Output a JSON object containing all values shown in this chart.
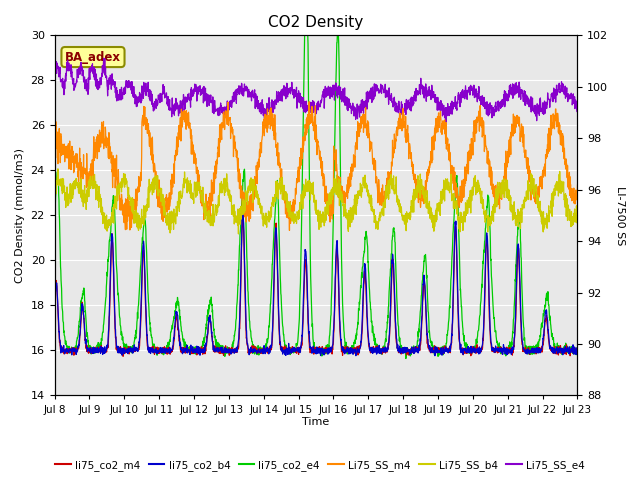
{
  "title": "CO2 Density",
  "xlabel": "Time",
  "ylabel_left": "CO2 Density (mmol/m3)",
  "ylabel_right": "LI-7500 SS",
  "ylim_left": [
    14,
    30
  ],
  "ylim_right": [
    88,
    102
  ],
  "xlim": [
    0,
    15
  ],
  "x_tick_labels": [
    "Jul 8",
    "Jul 9",
    "Jul 10",
    "Jul 11",
    "Jul 12",
    "Jul 13",
    "Jul 14",
    "Jul 15",
    "Jul 16",
    "Jul 17",
    "Jul 18",
    "Jul 19",
    "Jul 20",
    "Jul 21",
    "Jul 22",
    "Jul 23"
  ],
  "yticks_left": [
    14,
    16,
    18,
    20,
    22,
    24,
    26,
    28,
    30
  ],
  "yticks_right": [
    88,
    90,
    92,
    94,
    96,
    98,
    100,
    102
  ],
  "colors": {
    "li75_co2_m4": "#cc0000",
    "li75_co2_b4": "#0000cc",
    "li75_co2_e4": "#00cc00",
    "Li75_SS_m4": "#ff8800",
    "Li75_SS_b4": "#cccc00",
    "Li75_SS_e4": "#8800cc"
  },
  "bg_color": "#e8e8e8",
  "annotation_text": "BA_adex",
  "annotation_color": "#8b0000",
  "annotation_bg": "#ffff99",
  "annotation_border": "#8b8b00",
  "spike_times": [
    0.05,
    0.8,
    1.65,
    2.55,
    3.5,
    4.45,
    5.4,
    6.35,
    7.2,
    8.1,
    8.9,
    9.7,
    10.6,
    11.5,
    12.4,
    13.3,
    14.1
  ],
  "spike_heights_m4": [
    3.0,
    2.0,
    5.0,
    4.5,
    1.5,
    1.5,
    6.0,
    5.5,
    4.0,
    4.5,
    3.5,
    4.0,
    3.0,
    5.5,
    5.0,
    4.5,
    1.5
  ],
  "spike_heights_b4": [
    3.0,
    2.0,
    5.2,
    4.8,
    1.7,
    1.5,
    6.2,
    5.5,
    4.5,
    4.8,
    3.8,
    4.2,
    3.2,
    5.7,
    5.2,
    4.8,
    1.8
  ],
  "spike_heights_e4": [
    6.5,
    2.2,
    5.5,
    4.8,
    1.8,
    1.8,
    6.5,
    6.0,
    14.0,
    12.0,
    4.2,
    4.5,
    3.5,
    6.2,
    5.5,
    5.0,
    2.0
  ]
}
